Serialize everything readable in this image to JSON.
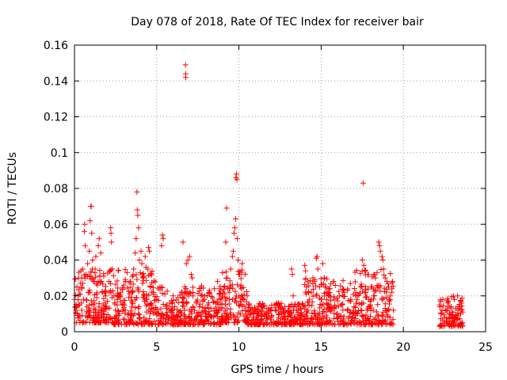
{
  "chart_data": {
    "type": "scatter",
    "title": "Day 078 of 2018, Rate Of TEC Index for receiver bair",
    "xlabel": "GPS time / hours",
    "ylabel": "ROTI / TECUs",
    "xlim": [
      0,
      25
    ],
    "ylim": [
      0,
      0.16
    ],
    "xticks": [
      0,
      5,
      10,
      15,
      20,
      25
    ],
    "xtick_labels": [
      "0",
      "5",
      "10",
      "15",
      "20",
      "25"
    ],
    "yticks": [
      0,
      0.02,
      0.04,
      0.06,
      0.08,
      0.1,
      0.12,
      0.14,
      0.16
    ],
    "ytick_labels": [
      "0",
      "0.02",
      "0.04",
      "0.06",
      "0.08",
      "0.1",
      "0.12",
      "0.14",
      "0.16"
    ],
    "grid": true,
    "marker": "plus",
    "color": "#ff0000",
    "series": [
      {
        "name": "ROTI",
        "points": [
          [
            0.0,
            0.018
          ],
          [
            0.1,
            0.012
          ],
          [
            0.15,
            0.025
          ],
          [
            0.2,
            0.009
          ],
          [
            0.25,
            0.03
          ],
          [
            0.3,
            0.015
          ],
          [
            0.35,
            0.021
          ],
          [
            0.4,
            0.034
          ],
          [
            0.45,
            0.012
          ],
          [
            0.5,
            0.027
          ],
          [
            0.55,
            0.018
          ],
          [
            0.6,
            0.056
          ],
          [
            0.62,
            0.06
          ],
          [
            0.65,
            0.048
          ],
          [
            0.7,
            0.032
          ],
          [
            0.75,
            0.014
          ],
          [
            0.8,
            0.038
          ],
          [
            0.85,
            0.022
          ],
          [
            0.9,
            0.045
          ],
          [
            0.95,
            0.062
          ],
          [
            1.0,
            0.07
          ],
          [
            1.02,
            0.07
          ],
          [
            1.05,
            0.055
          ],
          [
            1.1,
            0.04
          ],
          [
            1.15,
            0.028
          ],
          [
            1.2,
            0.016
          ],
          [
            1.25,
            0.033
          ],
          [
            1.3,
            0.042
          ],
          [
            1.35,
            0.019
          ],
          [
            1.4,
            0.026
          ],
          [
            1.45,
            0.048
          ],
          [
            1.5,
            0.052
          ],
          [
            1.55,
            0.031
          ],
          [
            1.6,
            0.044
          ],
          [
            1.65,
            0.012
          ],
          [
            1.7,
            0.022
          ],
          [
            1.75,
            0.015
          ],
          [
            1.8,
            0.01
          ],
          [
            1.85,
            0.013
          ],
          [
            1.9,
            0.02
          ],
          [
            1.95,
            0.008
          ],
          [
            2.0,
            0.017
          ],
          [
            2.1,
            0.028
          ],
          [
            2.2,
            0.058
          ],
          [
            2.22,
            0.055
          ],
          [
            2.25,
            0.05
          ],
          [
            2.3,
            0.035
          ],
          [
            2.4,
            0.02
          ],
          [
            2.5,
            0.012
          ],
          [
            2.6,
            0.018
          ],
          [
            2.7,
            0.009
          ],
          [
            2.8,
            0.022
          ],
          [
            2.9,
            0.015
          ],
          [
            3.0,
            0.026
          ],
          [
            3.1,
            0.012
          ],
          [
            3.2,
            0.033
          ],
          [
            3.3,
            0.019
          ],
          [
            3.4,
            0.028
          ],
          [
            3.5,
            0.022
          ],
          [
            3.6,
            0.035
          ],
          [
            3.7,
            0.044
          ],
          [
            3.75,
            0.052
          ],
          [
            3.8,
            0.078
          ],
          [
            3.82,
            0.068
          ],
          [
            3.85,
            0.065
          ],
          [
            3.9,
            0.058
          ],
          [
            3.95,
            0.04
          ],
          [
            4.0,
            0.033
          ],
          [
            4.05,
            0.045
          ],
          [
            4.1,
            0.038
          ],
          [
            4.15,
            0.027
          ],
          [
            4.2,
            0.03
          ],
          [
            4.25,
            0.02
          ],
          [
            4.3,
            0.042
          ],
          [
            4.35,
            0.036
          ],
          [
            4.4,
            0.018
          ],
          [
            4.5,
            0.047
          ],
          [
            4.55,
            0.045
          ],
          [
            4.6,
            0.025
          ],
          [
            4.7,
            0.015
          ],
          [
            4.8,
            0.022
          ],
          [
            4.9,
            0.011
          ],
          [
            5.0,
            0.018
          ],
          [
            5.1,
            0.01
          ],
          [
            5.2,
            0.025
          ],
          [
            5.3,
            0.048
          ],
          [
            5.35,
            0.054
          ],
          [
            5.4,
            0.052
          ],
          [
            5.5,
            0.021
          ],
          [
            5.6,
            0.013
          ],
          [
            5.7,
            0.008
          ],
          [
            5.8,
            0.016
          ],
          [
            5.9,
            0.012
          ],
          [
            6.0,
            0.02
          ],
          [
            6.1,
            0.014
          ],
          [
            6.2,
            0.009
          ],
          [
            6.3,
            0.019
          ],
          [
            6.4,
            0.011
          ],
          [
            6.5,
            0.022
          ],
          [
            6.6,
            0.05
          ],
          [
            6.7,
            0.012
          ],
          [
            6.75,
            0.149
          ],
          [
            6.76,
            0.144
          ],
          [
            6.77,
            0.142
          ],
          [
            6.8,
            0.038
          ],
          [
            6.9,
            0.04
          ],
          [
            7.0,
            0.042
          ],
          [
            7.1,
            0.032
          ],
          [
            7.15,
            0.03
          ],
          [
            7.2,
            0.02
          ],
          [
            7.3,
            0.012
          ],
          [
            7.4,
            0.016
          ],
          [
            7.5,
            0.009
          ],
          [
            7.6,
            0.014
          ],
          [
            7.7,
            0.02
          ],
          [
            7.8,
            0.011
          ],
          [
            7.9,
            0.018
          ],
          [
            8.0,
            0.01
          ],
          [
            8.1,
            0.015
          ],
          [
            8.2,
            0.022
          ],
          [
            8.3,
            0.013
          ],
          [
            8.4,
            0.019
          ],
          [
            8.5,
            0.024
          ],
          [
            8.6,
            0.016
          ],
          [
            8.7,
            0.028
          ],
          [
            8.8,
            0.021
          ],
          [
            8.9,
            0.018
          ],
          [
            9.0,
            0.033
          ],
          [
            9.1,
            0.025
          ],
          [
            9.2,
            0.05
          ],
          [
            9.25,
            0.069
          ],
          [
            9.3,
            0.03
          ],
          [
            9.4,
            0.022
          ],
          [
            9.5,
            0.035
          ],
          [
            9.6,
            0.042
          ],
          [
            9.65,
            0.045
          ],
          [
            9.7,
            0.055
          ],
          [
            9.75,
            0.058
          ],
          [
            9.8,
            0.063
          ],
          [
            9.82,
            0.086
          ],
          [
            9.85,
            0.088
          ],
          [
            9.88,
            0.085
          ],
          [
            9.9,
            0.052
          ],
          [
            9.95,
            0.04
          ],
          [
            10.0,
            0.032
          ],
          [
            10.1,
            0.025
          ],
          [
            10.2,
            0.038
          ],
          [
            10.3,
            0.018
          ],
          [
            10.4,
            0.012
          ],
          [
            10.5,
            0.02
          ],
          [
            10.6,
            0.015
          ],
          [
            10.7,
            0.01
          ],
          [
            10.8,
            0.013
          ],
          [
            10.9,
            0.008
          ],
          [
            11.0,
            0.012
          ],
          [
            11.2,
            0.009
          ],
          [
            11.4,
            0.014
          ],
          [
            11.6,
            0.01
          ],
          [
            11.8,
            0.013
          ],
          [
            12.0,
            0.009
          ],
          [
            12.2,
            0.012
          ],
          [
            12.4,
            0.016
          ],
          [
            12.6,
            0.01
          ],
          [
            12.8,
            0.014
          ],
          [
            13.0,
            0.012
          ],
          [
            13.2,
            0.035
          ],
          [
            13.25,
            0.032
          ],
          [
            13.3,
            0.02
          ],
          [
            13.5,
            0.012
          ],
          [
            13.7,
            0.009
          ],
          [
            13.9,
            0.015
          ],
          [
            14.0,
            0.037
          ],
          [
            14.05,
            0.034
          ],
          [
            14.1,
            0.025
          ],
          [
            14.2,
            0.012
          ],
          [
            14.3,
            0.018
          ],
          [
            14.4,
            0.022
          ],
          [
            14.5,
            0.03
          ],
          [
            14.6,
            0.028
          ],
          [
            14.7,
            0.041
          ],
          [
            14.75,
            0.042
          ],
          [
            14.8,
            0.035
          ],
          [
            14.9,
            0.025
          ],
          [
            15.0,
            0.018
          ],
          [
            15.1,
            0.038
          ],
          [
            15.2,
            0.03
          ],
          [
            15.3,
            0.022
          ],
          [
            15.4,
            0.015
          ],
          [
            15.5,
            0.02
          ],
          [
            15.6,
            0.012
          ],
          [
            15.8,
            0.018
          ],
          [
            16.0,
            0.01
          ],
          [
            16.2,
            0.015
          ],
          [
            16.4,
            0.022
          ],
          [
            16.6,
            0.012
          ],
          [
            16.8,
            0.018
          ],
          [
            17.0,
            0.014
          ],
          [
            17.2,
            0.02
          ],
          [
            17.4,
            0.025
          ],
          [
            17.5,
            0.04
          ],
          [
            17.55,
            0.083
          ],
          [
            17.6,
            0.037
          ],
          [
            17.65,
            0.034
          ],
          [
            17.7,
            0.022
          ],
          [
            17.8,
            0.012
          ],
          [
            17.9,
            0.018
          ],
          [
            18.0,
            0.015
          ],
          [
            18.1,
            0.025
          ],
          [
            18.2,
            0.02
          ],
          [
            18.3,
            0.03
          ],
          [
            18.4,
            0.033
          ],
          [
            18.5,
            0.05
          ],
          [
            18.55,
            0.048
          ],
          [
            18.6,
            0.045
          ],
          [
            18.7,
            0.042
          ],
          [
            18.75,
            0.04
          ],
          [
            18.8,
            0.035
          ],
          [
            18.9,
            0.03
          ],
          [
            19.0,
            0.028
          ],
          [
            19.1,
            0.025
          ],
          [
            19.2,
            0.018
          ],
          [
            19.3,
            0.022
          ],
          [
            19.4,
            0.012
          ],
          [
            22.2,
            0.015
          ],
          [
            22.3,
            0.01
          ],
          [
            22.4,
            0.018
          ],
          [
            22.5,
            0.008
          ],
          [
            22.6,
            0.012
          ],
          [
            22.7,
            0.016
          ],
          [
            22.8,
            0.004
          ],
          [
            22.9,
            0.014
          ],
          [
            23.0,
            0.011
          ],
          [
            23.1,
            0.018
          ],
          [
            23.2,
            0.009
          ],
          [
            23.3,
            0.02
          ],
          [
            23.4,
            0.013
          ],
          [
            23.5,
            0.017
          ],
          [
            23.6,
            0.011
          ]
        ]
      }
    ],
    "density_bands": [
      {
        "x": [
          0.0,
          2.0
        ],
        "y": [
          0.005,
          0.035
        ]
      },
      {
        "x": [
          2.0,
          5.0
        ],
        "y": [
          0.004,
          0.035
        ]
      },
      {
        "x": [
          5.0,
          9.0
        ],
        "y": [
          0.004,
          0.026
        ]
      },
      {
        "x": [
          9.0,
          10.5
        ],
        "y": [
          0.005,
          0.035
        ]
      },
      {
        "x": [
          10.5,
          14.0
        ],
        "y": [
          0.004,
          0.016
        ]
      },
      {
        "x": [
          14.0,
          17.0
        ],
        "y": [
          0.004,
          0.03
        ]
      },
      {
        "x": [
          17.0,
          19.4
        ],
        "y": [
          0.004,
          0.035
        ]
      },
      {
        "x": [
          22.2,
          23.6
        ],
        "y": [
          0.003,
          0.02
        ]
      }
    ]
  }
}
